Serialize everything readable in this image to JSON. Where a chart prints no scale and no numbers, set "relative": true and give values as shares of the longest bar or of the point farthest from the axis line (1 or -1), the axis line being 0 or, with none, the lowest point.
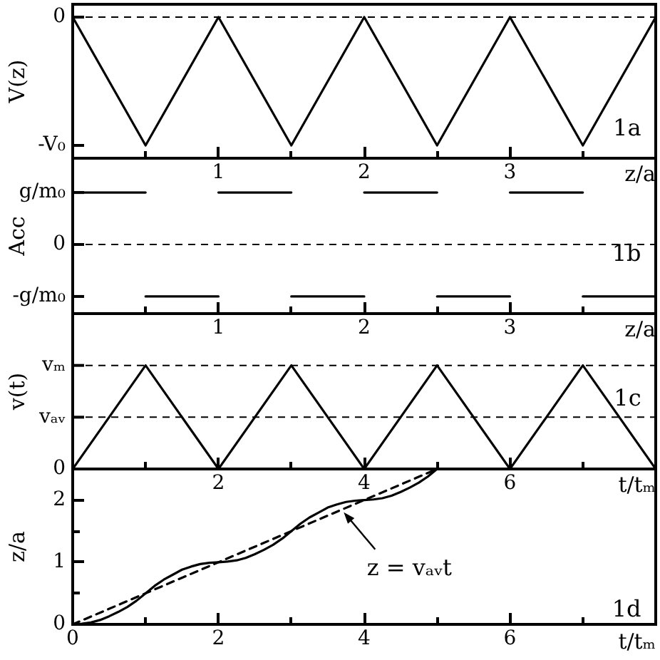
{
  "chart_data": [
    {
      "type": "line",
      "relative": true,
      "xlabel": "z/a",
      "ylabel": "V(z)",
      "annotations": [
        "-V₀",
        "1a"
      ],
      "x": [
        0,
        0.5,
        1,
        1.5,
        2,
        2.5,
        3,
        3.5,
        4
      ],
      "values": [
        0,
        -1,
        0,
        -1,
        0,
        -1,
        0,
        -1,
        0
      ],
      "color": "#000000",
      "xlim": [
        0,
        4
      ],
      "xticks": [
        {
          "value": 0.5,
          "label": null
        },
        1,
        {
          "value": 1.5,
          "label": null
        },
        2,
        {
          "value": 2.5,
          "label": null
        },
        3,
        {
          "value": 3.5,
          "label": null
        }
      ],
      "ref_lines": [
        {
          "axis": "y",
          "value": 0,
          "label": "0",
          "color": "#000000",
          "line_style": "dashed"
        }
      ]
    },
    {
      "type": "line",
      "relative": true,
      "xlabel": "z/a",
      "ylabel": "Acc",
      "annotations": [
        "g/m₀",
        "-g/m₀",
        "1b"
      ],
      "x": [
        0,
        0.5,
        0.5,
        1,
        1,
        1.5,
        1.5,
        2,
        2,
        2.5,
        2.5,
        3,
        3,
        3.5,
        3.5,
        4
      ],
      "values": [
        1,
        1,
        -1,
        -1,
        1,
        1,
        -1,
        -1,
        1,
        1,
        -1,
        -1,
        1,
        1,
        -1,
        -1
      ],
      "color": "#000000",
      "xlim": [
        0,
        4
      ],
      "xticks": [
        {
          "value": 0.5,
          "label": null
        },
        1,
        {
          "value": 1.5,
          "label": null
        },
        2,
        {
          "value": 2.5,
          "label": null
        },
        3,
        {
          "value": 3.5,
          "label": null
        }
      ],
      "ref_lines": [
        {
          "axis": "y",
          "value": 0,
          "label": "0",
          "color": "#000000",
          "line_style": "dashed"
        }
      ]
    },
    {
      "type": "line",
      "relative": true,
      "xlabel": "t/tₘ",
      "ylabel": "v(t)",
      "annotations": [
        "0",
        "1c"
      ],
      "x": [
        0,
        1,
        2,
        3,
        4,
        5,
        6,
        7,
        8
      ],
      "values": [
        0,
        1,
        0,
        1,
        0,
        1,
        0,
        1,
        0
      ],
      "color": "#000000",
      "xlim": [
        0,
        8
      ],
      "xticks": [
        {
          "value": 1,
          "label": null
        },
        2,
        {
          "value": 3,
          "label": null
        },
        4,
        {
          "value": 5,
          "label": null
        },
        6,
        {
          "value": 7,
          "label": null
        }
      ],
      "ref_lines": [
        {
          "axis": "y",
          "value": 1,
          "label": "vₘ",
          "color": "#000000",
          "line_style": "dashed"
        },
        {
          "axis": "y",
          "value": 0.5,
          "label": "vₐᵥ",
          "color": "#000000",
          "line_style": "dashed"
        }
      ]
    },
    {
      "type": "line",
      "xlabel": "t/tₘ",
      "ylabel": "z/a",
      "annotations": [
        {
          "text": "z = vₐᵥt",
          "x": 3.7,
          "y": 1.85
        },
        "1d"
      ],
      "series": [
        {
          "color": "#000000",
          "x": [
            0,
            0.125,
            0.25,
            0.375,
            0.5,
            0.625,
            0.75,
            0.875,
            1,
            1.125,
            1.25,
            1.375,
            1.5,
            1.625,
            1.75,
            1.875,
            2,
            2.125,
            2.25,
            2.375,
            2.5,
            2.625,
            2.75,
            2.875,
            3,
            3.125,
            3.25,
            3.375,
            3.5,
            3.625,
            3.75,
            3.875,
            4,
            4.125,
            4.25,
            4.375,
            4.5,
            4.625,
            4.75,
            4.875,
            5
          ],
          "values": [
            0,
            0.01,
            0.03,
            0.07,
            0.13,
            0.2,
            0.28,
            0.38,
            0.5,
            0.62,
            0.72,
            0.8,
            0.88,
            0.93,
            0.97,
            0.99,
            1,
            1.01,
            1.03,
            1.07,
            1.13,
            1.2,
            1.28,
            1.38,
            1.5,
            1.62,
            1.72,
            1.8,
            1.88,
            1.93,
            1.97,
            1.99,
            2,
            2.01,
            2.03,
            2.07,
            2.13,
            2.2,
            2.28,
            2.38,
            2.5
          ]
        },
        {
          "type": "line",
          "color": "#000000",
          "line_style": "dashed",
          "x": [
            0,
            5
          ],
          "values": [
            0,
            2.5
          ]
        }
      ],
      "xlim": [
        0,
        8
      ],
      "xticks": [
        0,
        {
          "value": 1,
          "label": null
        },
        2,
        {
          "value": 3,
          "label": null
        },
        4,
        {
          "value": 5,
          "label": null
        },
        6,
        {
          "value": 7,
          "label": null
        }
      ],
      "ylim": [
        0,
        2.5
      ],
      "yticks": [
        0,
        {
          "value": 0.5,
          "label": null
        },
        1,
        {
          "value": 1.5,
          "label": null
        },
        2
      ]
    }
  ]
}
